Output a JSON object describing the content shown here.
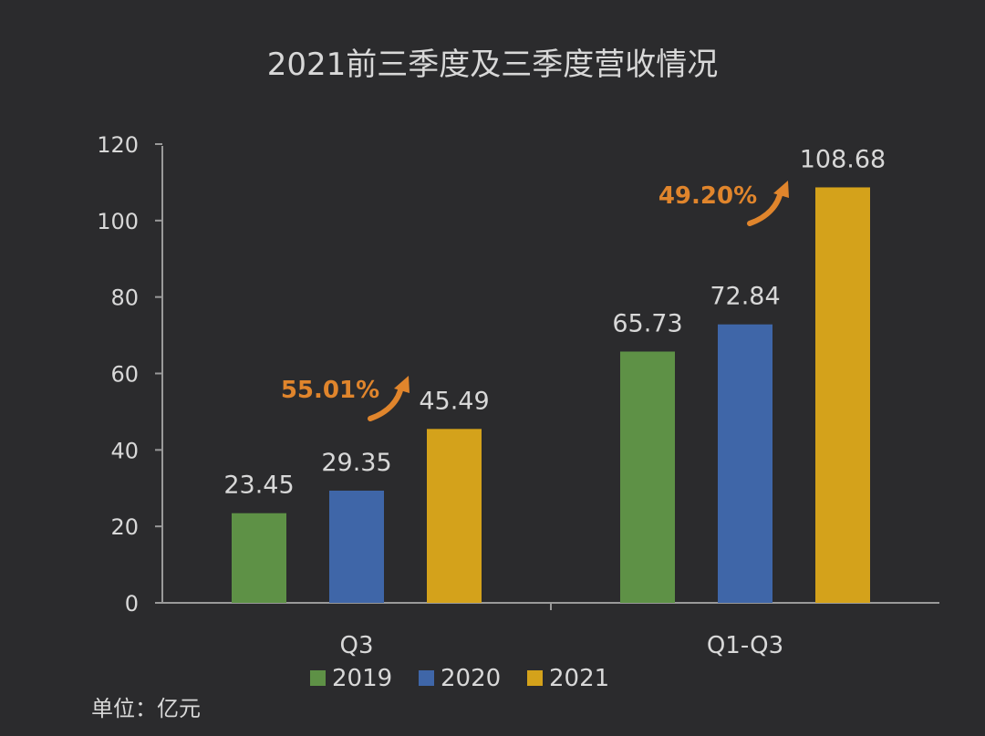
{
  "chart_data": {
    "type": "bar",
    "title": "2021前三季度及三季度营收情况",
    "categories": [
      "Q3",
      "Q1-Q3"
    ],
    "series": [
      {
        "name": "2019",
        "color": "#5e9146",
        "values": [
          23.45,
          65.73
        ]
      },
      {
        "name": "2020",
        "color": "#3f66a8",
        "values": [
          29.35,
          72.84
        ]
      },
      {
        "name": "2021",
        "color": "#d4a21b",
        "values": [
          45.49,
          108.68
        ]
      }
    ],
    "value_labels": [
      [
        "23.45",
        "65.73"
      ],
      [
        "29.35",
        "72.84"
      ],
      [
        "45.49",
        "108.68"
      ]
    ],
    "ylim": [
      0,
      120
    ],
    "yticks": [
      "0",
      "20",
      "40",
      "60",
      "80",
      "100",
      "120"
    ],
    "annotations": [
      "55.01%",
      "49.20%"
    ],
    "legend_position": "bottom",
    "grid": false,
    "unit_label": "单位：亿元"
  }
}
